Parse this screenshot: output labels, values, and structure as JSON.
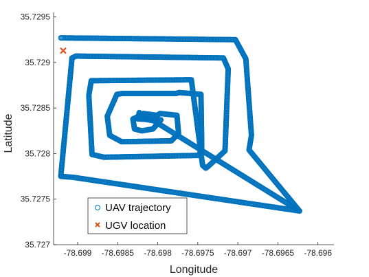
{
  "chart_data": {
    "type": "scatter",
    "xlabel": "Longitude",
    "ylabel": "Latitude",
    "xlim": [
      -78.6993,
      -78.6958
    ],
    "ylim": [
      35.727,
      35.72955
    ],
    "xticks": [
      -78.699,
      -78.6985,
      -78.698,
      -78.6975,
      -78.697,
      -78.6965,
      -78.696
    ],
    "xtick_labels": [
      "-78.699",
      "-78.6985",
      "-78.698",
      "-78.6975",
      "-78.697",
      "-78.6965",
      "-78.696"
    ],
    "yticks": [
      35.727,
      35.7275,
      35.728,
      35.7285,
      35.729,
      35.7295
    ],
    "ytick_labels": [
      "35.727",
      "35.7275",
      "35.728",
      "35.7285",
      "35.729",
      "35.7295"
    ],
    "grid": false,
    "legend_position": "bottom-left",
    "series": [
      {
        "name": "UAV trajectory",
        "marker": "o",
        "color": "#0072BD",
        "x": [
          -78.69921,
          -78.69703,
          -78.6969,
          -78.69683,
          -78.69686,
          -78.69623,
          -78.69906,
          -78.69921,
          -78.69907,
          -78.69902,
          -78.69718,
          -78.69712,
          -78.69716,
          -78.69737,
          -78.6974,
          -78.69744,
          -78.69758,
          -78.69883,
          -78.69886,
          -78.69882,
          -78.69867,
          -78.69749,
          -78.69745,
          -78.69746,
          -78.69773,
          -78.69777,
          -78.69844,
          -78.69851,
          -78.69863,
          -78.6986,
          -78.69845,
          -78.69783,
          -78.69774,
          -78.69776,
          -78.69797,
          -78.69801,
          -78.69818,
          -78.69821,
          -78.69831,
          -78.69829,
          -78.6982,
          -78.69806,
          -78.69797,
          -78.69796,
          -78.69825,
          -78.69823,
          -78.69818,
          -78.69805,
          -78.69623
        ],
        "y": [
          35.72927,
          35.72925,
          35.72904,
          35.7282,
          35.72804,
          35.72737,
          35.72774,
          35.72775,
          35.72905,
          35.72907,
          35.72905,
          35.72893,
          35.72803,
          35.72786,
          35.72784,
          35.72787,
          35.72881,
          35.7288,
          35.72864,
          35.72799,
          35.72796,
          35.72798,
          35.72805,
          35.72865,
          35.72867,
          35.72866,
          35.72866,
          35.72865,
          35.72841,
          35.7282,
          35.72813,
          35.72814,
          35.72822,
          35.72842,
          35.72844,
          35.72842,
          35.72844,
          35.72842,
          35.72838,
          35.72827,
          35.72825,
          35.72827,
          35.72836,
          35.72837,
          35.72838,
          35.72845,
          35.72838,
          35.72836,
          35.72737
        ]
      },
      {
        "name": "UGV location",
        "marker": "x",
        "color": "#D95319",
        "x": [
          -78.69918
        ],
        "y": [
          35.72913
        ]
      }
    ]
  }
}
